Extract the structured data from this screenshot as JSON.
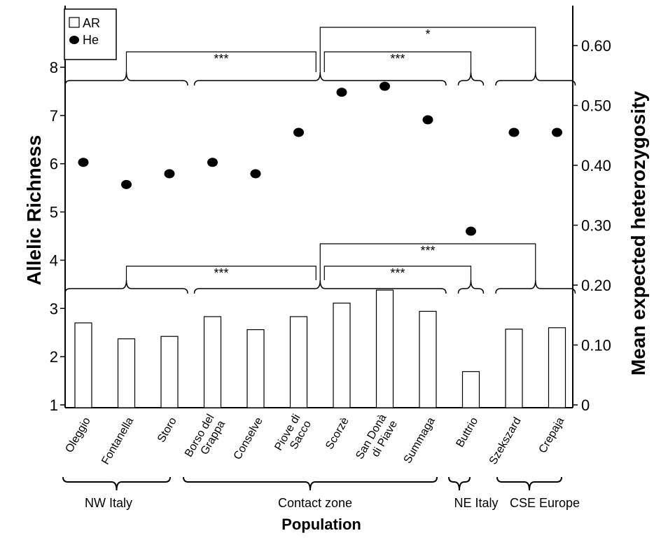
{
  "chart_data": {
    "type": "bar",
    "categories": [
      "Oleggio",
      "Fontanella",
      "Storo",
      "Borso del Grappa",
      "Conselve",
      "Piove di Sacco",
      "Scorzè",
      "San Donà di Piave",
      "Summaga",
      "Buttrio",
      "Szekszard",
      "Crepaja"
    ],
    "category_lines": [
      [
        "Oleggio"
      ],
      [
        "Fontanella"
      ],
      [
        "Storo"
      ],
      [
        "Borso del",
        "Grappa"
      ],
      [
        "Conselve"
      ],
      [
        "Piove di",
        "Sacco"
      ],
      [
        "Scorzè"
      ],
      [
        "San Donà",
        "di Piave"
      ],
      [
        "Summaga"
      ],
      [
        "Buttrio"
      ],
      [
        "Szekszard"
      ],
      [
        "Crepaja"
      ]
    ],
    "series": [
      {
        "name": "AR",
        "kind": "bar",
        "axis": "left",
        "values": [
          2.7,
          2.37,
          2.42,
          2.83,
          2.56,
          2.83,
          3.11,
          3.38,
          2.94,
          1.69,
          2.57,
          2.6
        ]
      },
      {
        "name": "He",
        "kind": "scatter",
        "axis": "right",
        "values": [
          0.405,
          0.368,
          0.386,
          0.405,
          0.386,
          0.455,
          0.522,
          0.532,
          0.476,
          0.29,
          0.455,
          0.455
        ]
      }
    ],
    "ylabel": "Allelic Richness",
    "y2label": "Mean expected heterozygosity",
    "xlabel": "Population",
    "ylim": [
      1,
      9
    ],
    "y_ticks": [
      "1",
      "2",
      "3",
      "4",
      "5",
      "6",
      "7",
      "8"
    ],
    "y2_ticks": [
      "0",
      "0.10",
      "0.20",
      "0.30",
      "0.40",
      "0.50",
      "0.60"
    ],
    "y2_tick_values": [
      0,
      0.1,
      0.2,
      0.3,
      0.4,
      0.5,
      0.6
    ],
    "legend": [
      {
        "label": "AR",
        "marker": "open-square"
      },
      {
        "label": "He",
        "marker": "filled-circle"
      }
    ],
    "legend_position": "top-left",
    "groups": [
      {
        "label": "NW Italy",
        "first": 0,
        "last": 2
      },
      {
        "label": "Contact zone",
        "first": 3,
        "last": 8
      },
      {
        "label": "NE Italy",
        "first": 9,
        "last": 9
      },
      {
        "label": "CSE Europe",
        "first": 10,
        "last": 11
      }
    ],
    "significance": {
      "upper": [
        {
          "from": "NW Italy",
          "to": "Contact zone",
          "label": "***"
        },
        {
          "from": "Contact zone",
          "to": "NE Italy",
          "label": "***"
        },
        {
          "from": "Contact zone",
          "to": "CSE Europe",
          "label": "*"
        }
      ],
      "lower": [
        {
          "from": "NW Italy",
          "to": "Contact zone",
          "label": "***"
        },
        {
          "from": "Contact zone",
          "to": "NE Italy",
          "label": "***"
        },
        {
          "from": "Contact zone",
          "to": "CSE Europe",
          "label": "***"
        }
      ]
    },
    "grid": false
  }
}
